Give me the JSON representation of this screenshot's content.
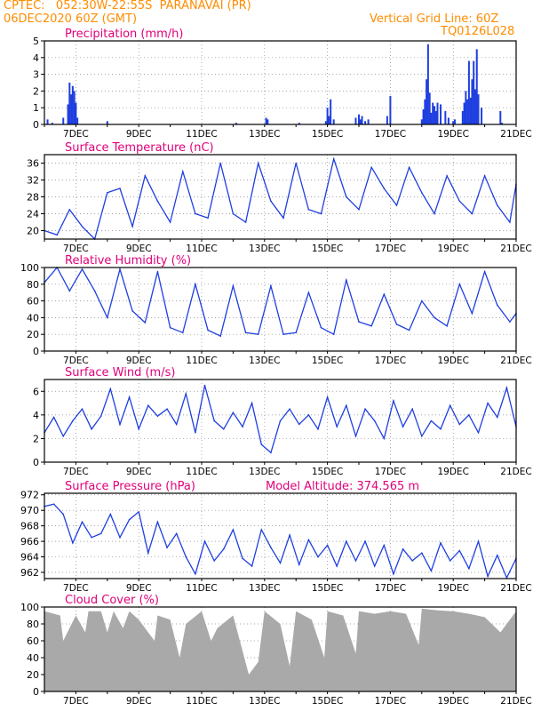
{
  "header": {
    "line1": "CPTEC:   052:30W-22:55S  PARANAVAI (PR)",
    "line2": "06DEC2020 60Z (GMT)",
    "right1": "Vertical Grid Line: 60Z",
    "right2": "TQ0126L028"
  },
  "colors": {
    "header": "#ff8c00",
    "panel_title": "#e0007a",
    "series": "#1f3fe0",
    "cloud": "#a9a9a9",
    "grid": "#888888"
  },
  "x_axis": {
    "start_day": 6,
    "end_day": 21,
    "tick_labels": [
      "7DEC",
      "9DEC",
      "11DEC",
      "13DEC",
      "15DEC",
      "17DEC",
      "19DEC",
      "21DEC"
    ]
  },
  "chart_data": [
    {
      "type": "bar",
      "title": "Precipitation (mm/h)",
      "ylim": [
        0,
        5
      ],
      "y_ticks": [
        "0",
        "1",
        "2",
        "3",
        "4",
        "5"
      ],
      "x_unit": "day of December 2020",
      "x": [
        6.1,
        6.25,
        6.6,
        6.75,
        6.8,
        6.85,
        6.9,
        6.95,
        7.0,
        7.05,
        8.0,
        12.1,
        13.05,
        13.1,
        14.1,
        14.95,
        15.0,
        15.05,
        15.1,
        15.2,
        15.9,
        16.0,
        16.05,
        16.1,
        16.2,
        16.3,
        16.9,
        17.0,
        18.0,
        18.05,
        18.1,
        18.15,
        18.2,
        18.25,
        18.3,
        18.35,
        18.4,
        18.45,
        18.5,
        18.6,
        18.75,
        18.85,
        19.0,
        19.05,
        19.3,
        19.35,
        19.4,
        19.45,
        19.5,
        19.55,
        19.6,
        19.65,
        19.7,
        19.75,
        19.8,
        19.9,
        20.5,
        20.55
      ],
      "values": [
        0.3,
        0.1,
        0.4,
        1.2,
        2.5,
        1.8,
        2.3,
        2.0,
        1.3,
        0.4,
        0.2,
        0.1,
        0.4,
        0.3,
        0.1,
        0.2,
        1.0,
        0.5,
        1.5,
        0.3,
        0.4,
        0.6,
        0.3,
        0.5,
        0.2,
        0.3,
        0.5,
        1.7,
        0.3,
        0.9,
        1.5,
        2.7,
        4.8,
        1.9,
        0.7,
        1.3,
        1.1,
        0.8,
        1.3,
        1.2,
        0.8,
        0.4,
        0.2,
        0.3,
        0.8,
        1.3,
        2.0,
        1.5,
        3.8,
        1.6,
        2.7,
        3.8,
        2.1,
        4.5,
        1.8,
        1.0,
        0.8,
        0.1
      ]
    },
    {
      "type": "line",
      "title": "Surface Temperature (nC)",
      "ylim": [
        18,
        38
      ],
      "y_ticks": [
        "20",
        "24",
        "28",
        "32",
        "36"
      ],
      "series": [
        {
          "x": [
            6.0,
            6.4,
            6.8,
            7.2,
            7.6,
            8.0,
            8.4,
            8.8,
            9.2,
            9.6,
            10.0,
            10.4,
            10.8,
            11.2,
            11.6,
            12.0,
            12.4,
            12.8,
            13.2,
            13.6,
            14.0,
            14.4,
            14.8,
            15.2,
            15.6,
            16.0,
            16.4,
            16.8,
            17.2,
            17.6,
            18.0,
            18.4,
            18.8,
            19.2,
            19.6,
            20.0,
            20.4,
            20.8,
            21.0
          ],
          "values": [
            20,
            19,
            25,
            21,
            18,
            29,
            30,
            21,
            33,
            27,
            22,
            34,
            24,
            23,
            36,
            24,
            22,
            36,
            27,
            23,
            36,
            25,
            24,
            37,
            28,
            25,
            35,
            30,
            26,
            35,
            29,
            24,
            33,
            27,
            24,
            33,
            26,
            22,
            31
          ]
        }
      ]
    },
    {
      "type": "line",
      "title": "Relative Humidity (%)",
      "ylim": [
        0,
        100
      ],
      "y_ticks": [
        "0",
        "20",
        "40",
        "60",
        "80",
        "100"
      ],
      "series": [
        {
          "x": [
            6.0,
            6.4,
            6.8,
            7.2,
            7.6,
            8.0,
            8.4,
            8.8,
            9.2,
            9.6,
            10.0,
            10.4,
            10.8,
            11.2,
            11.6,
            12.0,
            12.4,
            12.8,
            13.2,
            13.6,
            14.0,
            14.4,
            14.8,
            15.2,
            15.6,
            16.0,
            16.4,
            16.8,
            17.2,
            17.6,
            18.0,
            18.4,
            18.8,
            19.2,
            19.6,
            20.0,
            20.4,
            20.8,
            21.0
          ],
          "values": [
            82,
            100,
            72,
            98,
            72,
            40,
            98,
            48,
            34,
            95,
            28,
            22,
            80,
            25,
            18,
            78,
            22,
            20,
            78,
            20,
            22,
            70,
            28,
            20,
            85,
            35,
            30,
            68,
            32,
            25,
            60,
            40,
            30,
            80,
            45,
            95,
            55,
            35,
            45
          ]
        }
      ]
    },
    {
      "type": "line",
      "title": "Surface Wind (m/s)",
      "ylim": [
        0,
        7
      ],
      "y_ticks": [
        "0",
        "2",
        "4",
        "6"
      ],
      "series": [
        {
          "x": [
            6.0,
            6.3,
            6.6,
            6.9,
            7.2,
            7.5,
            7.8,
            8.1,
            8.4,
            8.7,
            9.0,
            9.3,
            9.6,
            9.9,
            10.2,
            10.5,
            10.8,
            11.1,
            11.4,
            11.7,
            12.0,
            12.3,
            12.6,
            12.9,
            13.2,
            13.5,
            13.8,
            14.1,
            14.4,
            14.7,
            15.0,
            15.3,
            15.6,
            15.9,
            16.2,
            16.5,
            16.8,
            17.1,
            17.4,
            17.7,
            18.0,
            18.3,
            18.6,
            18.9,
            19.2,
            19.5,
            19.8,
            20.1,
            20.4,
            20.7,
            21.0
          ],
          "values": [
            2.5,
            3.8,
            2.2,
            3.5,
            4.5,
            2.8,
            3.9,
            6.2,
            3.2,
            5.5,
            2.8,
            4.8,
            3.9,
            4.5,
            3.2,
            5.8,
            2.5,
            6.5,
            3.5,
            2.8,
            4.2,
            3.0,
            5.0,
            1.5,
            0.8,
            3.5,
            4.5,
            3.2,
            4.0,
            2.8,
            5.5,
            3.0,
            4.8,
            2.2,
            4.5,
            3.5,
            2.0,
            5.2,
            3.0,
            4.5,
            2.2,
            3.5,
            2.8,
            4.8,
            3.2,
            4.0,
            2.5,
            5.0,
            3.8,
            6.3,
            3.0
          ]
        }
      ]
    },
    {
      "type": "line",
      "title": "Surface Pressure (hPa)",
      "annotation": "Model Altitude: 374.565 m",
      "ylim": [
        961.2,
        972.2
      ],
      "y_ticks": [
        "962",
        "964",
        "966",
        "968",
        "970",
        "972"
      ],
      "series": [
        {
          "x": [
            6.0,
            6.3,
            6.6,
            6.9,
            7.2,
            7.5,
            7.8,
            8.1,
            8.4,
            8.7,
            9.0,
            9.3,
            9.6,
            9.9,
            10.2,
            10.5,
            10.8,
            11.1,
            11.4,
            11.7,
            12.0,
            12.3,
            12.6,
            12.9,
            13.2,
            13.5,
            13.8,
            14.1,
            14.4,
            14.7,
            15.0,
            15.3,
            15.6,
            15.9,
            16.2,
            16.5,
            16.8,
            17.1,
            17.4,
            17.7,
            18.0,
            18.3,
            18.6,
            18.9,
            19.2,
            19.5,
            19.8,
            20.1,
            20.4,
            20.7,
            21.0
          ],
          "values": [
            970.5,
            970.8,
            969.5,
            965.8,
            968.5,
            966.5,
            967.0,
            969.5,
            966.5,
            968.8,
            969.8,
            964.5,
            968.5,
            965.2,
            967.0,
            964.0,
            961.8,
            966.0,
            963.5,
            965.0,
            967.5,
            963.8,
            962.8,
            967.5,
            965.2,
            963.2,
            966.8,
            963.0,
            966.2,
            964.0,
            965.5,
            962.8,
            966.0,
            963.5,
            966.0,
            962.8,
            965.5,
            961.8,
            965.0,
            963.5,
            964.5,
            962.2,
            965.8,
            963.5,
            964.8,
            962.5,
            966.0,
            961.5,
            964.2,
            961.3,
            963.8
          ]
        }
      ]
    },
    {
      "type": "area",
      "title": "Cloud Cover (%)",
      "ylim": [
        0,
        100
      ],
      "y_ticks": [
        "0",
        "20",
        "40",
        "60",
        "80",
        "100"
      ],
      "series": [
        {
          "x": [
            6.0,
            6.5,
            6.6,
            7.0,
            7.3,
            7.4,
            7.8,
            8.0,
            8.2,
            8.5,
            8.7,
            9.0,
            9.5,
            9.6,
            10.0,
            10.3,
            10.5,
            11.0,
            11.3,
            11.5,
            12.0,
            12.5,
            12.8,
            13.0,
            13.5,
            13.8,
            14.0,
            14.5,
            14.9,
            15.0,
            15.5,
            15.9,
            16.0,
            16.5,
            17.0,
            17.5,
            17.9,
            18.0,
            18.5,
            19.0,
            19.5,
            20.0,
            20.5,
            21.0
          ],
          "values": [
            95,
            90,
            60,
            90,
            70,
            95,
            95,
            70,
            95,
            75,
            95,
            85,
            60,
            90,
            85,
            40,
            80,
            95,
            60,
            75,
            90,
            20,
            35,
            95,
            80,
            30,
            95,
            85,
            40,
            95,
            90,
            45,
            95,
            92,
            95,
            92,
            55,
            98,
            96,
            95,
            92,
            88,
            70,
            95
          ]
        }
      ]
    }
  ]
}
